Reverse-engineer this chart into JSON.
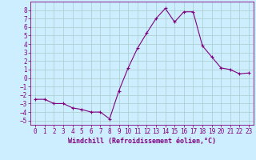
{
  "x": [
    0,
    1,
    2,
    3,
    4,
    5,
    6,
    7,
    8,
    9,
    10,
    11,
    12,
    13,
    14,
    15,
    16,
    17,
    18,
    19,
    20,
    21,
    22,
    23
  ],
  "y": [
    -2.5,
    -2.5,
    -3.0,
    -3.0,
    -3.5,
    -3.7,
    -4.0,
    -4.0,
    -4.8,
    -1.5,
    1.2,
    3.5,
    5.3,
    7.0,
    8.2,
    6.6,
    7.8,
    7.8,
    3.8,
    2.5,
    1.2,
    1.0,
    0.5,
    0.6
  ],
  "line_color": "#800080",
  "marker_color": "#800080",
  "bg_color": "#cceeff",
  "grid_color": "#aacccc",
  "xlabel": "Windchill (Refroidissement éolien,°C)",
  "ylim": [
    -5.5,
    9.0
  ],
  "xlim": [
    -0.5,
    23.5
  ],
  "yticks": [
    -5,
    -4,
    -3,
    -2,
    -1,
    0,
    1,
    2,
    3,
    4,
    5,
    6,
    7,
    8
  ],
  "xticks": [
    0,
    1,
    2,
    3,
    4,
    5,
    6,
    7,
    8,
    9,
    10,
    11,
    12,
    13,
    14,
    15,
    16,
    17,
    18,
    19,
    20,
    21,
    22,
    23
  ],
  "label_color": "#800080",
  "label_fontsize": 6.0,
  "tick_fontsize": 5.5
}
